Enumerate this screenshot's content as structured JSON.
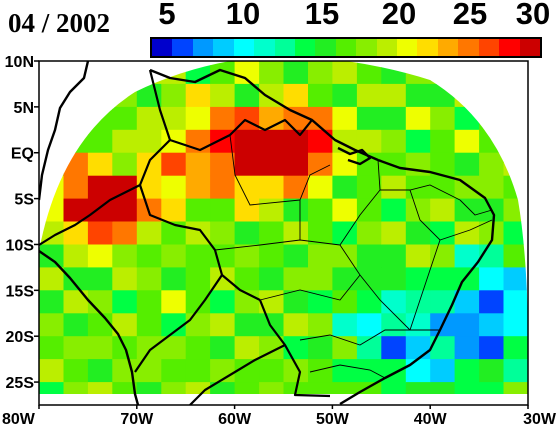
{
  "title": "04 / 2002",
  "colorbar": {
    "ticks": [
      "5",
      "10",
      "15",
      "20",
      "25",
      "30"
    ],
    "min": 5,
    "max": 30,
    "colors": [
      "#0000cc",
      "#0044ff",
      "#0099ff",
      "#00ccff",
      "#00ffff",
      "#00ffcc",
      "#00ff99",
      "#00ff44",
      "#22ee22",
      "#55ee00",
      "#88ee00",
      "#bbee00",
      "#eeff00",
      "#ffdd00",
      "#ffaa00",
      "#ff7700",
      "#ff4400",
      "#ff0000",
      "#cc0000"
    ]
  },
  "map": {
    "lat_labels": [
      "10N",
      "5N",
      "EQ",
      "5S",
      "10S",
      "15S",
      "20S",
      "25S"
    ],
    "lon_labels": [
      "80W",
      "70W",
      "60W",
      "50W",
      "40W",
      "30W"
    ],
    "lon_range": [
      -80,
      -30
    ],
    "lat_range": [
      -27.5,
      10
    ]
  },
  "chart_data": {
    "type": "heatmap",
    "title": "04 / 2002",
    "color_scale": [
      5,
      30
    ],
    "hotspots": [
      {
        "lon": -75,
        "lat": -5,
        "value": 28
      },
      {
        "lon": -72,
        "lat": -6,
        "value": 28
      },
      {
        "lon": -56,
        "lat": 0,
        "value": 28
      },
      {
        "lon": -53,
        "lat": 1,
        "value": 29
      },
      {
        "lon": -59,
        "lat": -1,
        "value": 25
      },
      {
        "lon": -66,
        "lat": -2,
        "value": 24
      },
      {
        "lon": -62,
        "lat": 3,
        "value": 23
      }
    ],
    "coldspots": [
      {
        "lon": -35,
        "lat": -20,
        "value": 10
      },
      {
        "lon": -33,
        "lat": -15,
        "value": 11
      },
      {
        "lon": -45,
        "lat": -18,
        "value": 14
      },
      {
        "lon": -42,
        "lat": -22,
        "value": 12
      }
    ]
  }
}
